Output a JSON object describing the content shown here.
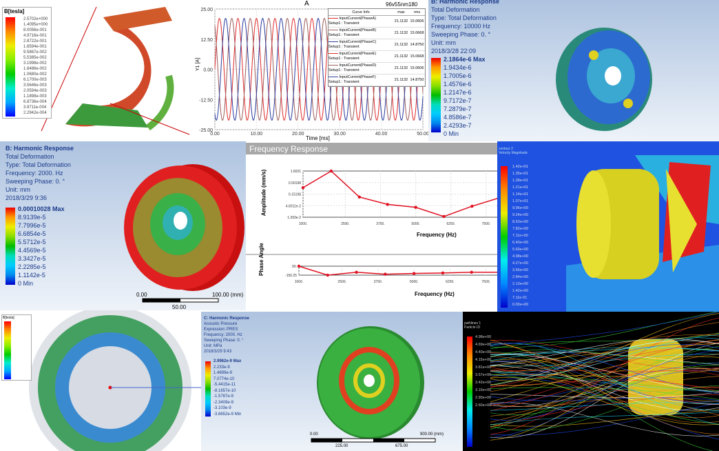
{
  "p1": {
    "title": "B[tesla]",
    "values": [
      "2.5702e+000",
      "1.4095e+000",
      "8.0056e-001",
      "4.9716e-001",
      "2.8722e-001",
      "1.6594e-001",
      "9.5867e-002",
      "5.5385e-002",
      "3.1998e-002",
      "1.8486e-002",
      "1.0680e-002",
      "6.1700e-003",
      "3.5646e-003",
      "2.0594e-003",
      "1.1898e-003",
      "6.8736e-004",
      "3.9711e-004",
      "2.2942e-004"
    ]
  },
  "p3": {
    "lines": [
      "B: Harmonic Response",
      "Total Deformation",
      "Type: Total Deformation",
      "Frequency: 10000 Hz",
      "Sweeping Phase: 0. °",
      "Unit: mm",
      "2018/3/28 22:09"
    ],
    "values": [
      "2.1864e-6 Max",
      "1.9434e-6",
      "1.7005e-6",
      "1.4576e-6",
      "1.2147e-6",
      "9.7172e-7",
      "7.2879e-7",
      "4.8586e-7",
      "2.4293e-7",
      "0 Min"
    ]
  },
  "p4": {
    "lines": [
      "B: Harmonic Response",
      "Total Deformation",
      "Type: Total Deformation",
      "Frequency: 2000. Hz",
      "Sweeping Phase: 0. °",
      "Unit: mm",
      "2018/3/29 9:36"
    ],
    "values": [
      "0.00010028 Max",
      "8.9139e-5",
      "7.7996e-5",
      "6.6854e-5",
      "5.5712e-5",
      "4.4569e-5",
      "3.3427e-5",
      "2.2285e-5",
      "1.1142e-5",
      "0 Min"
    ],
    "scale": {
      "left": "0.00",
      "right": "100.00 (mm)",
      "mid": "50.00"
    }
  },
  "p6": {
    "lines": [
      "contour 2",
      "Velocity Magnitude"
    ],
    "values": [
      "1.42e+01",
      "1.35e+01",
      "1.28e+01",
      "1.21e+01",
      "1.14e+01",
      "1.07e+01",
      "9.96e+00",
      "9.24e+00",
      "8.53e+00",
      "7.82e+00",
      "7.11e+00",
      "6.40e+00",
      "5.69e+00",
      "4.98e+00",
      "4.27e+00",
      "3.56e+00",
      "2.84e+00",
      "2.13e+00",
      "1.42e+00",
      "7.11e-01",
      "0.00e+00"
    ]
  },
  "p7": {
    "title": "B[tesla]"
  },
  "p8": {
    "lines": [
      "C: Harmonic Response",
      "Acoustic Pressure",
      "Expression: PRES",
      "Frequency: 2000. Hz",
      "Sweeping Phase: 0. °",
      "Unit: MPa",
      "2018/3/29 9:43"
    ],
    "values": [
      "2.9962e-9 Max",
      "2.233e-9",
      "1.4699e-9",
      "7.0774e-10",
      "-5.4415e-11",
      "-8.1657e-10",
      "-1.5787e-9",
      "-2.3409e-9",
      "-3.103e-9",
      "-3.8652e-9 Min"
    ],
    "scale": {
      "left": "0.00",
      "right": "900.00 (mm)",
      "t1": "225.00",
      "t2": "675.00"
    }
  },
  "p9": {
    "lines": [
      "pathlines 1",
      "Particle ID"
    ],
    "values": [
      "4.98e+00",
      "4.69e+00",
      "4.40e+00",
      "4.15e+00",
      "3.81e+00",
      "3.57e+00",
      "3.42e+00",
      "3.15e+00",
      "2.90e+00",
      "2.60e+00"
    ]
  },
  "chart_data": [
    {
      "type": "line",
      "title": "A",
      "subtitle": "96v55nm180",
      "xlabel": "Time [ms]",
      "ylabel": "Y1 [A]",
      "xlim": [
        0,
        50
      ],
      "ylim": [
        -25,
        25
      ],
      "xticks": [
        "0.00",
        "10.00",
        "20.00",
        "30.00",
        "40.00",
        "50.00"
      ],
      "yticks": [
        "25.00",
        "12.50",
        "0.00",
        "-12.50",
        "-25.00"
      ],
      "grid": true,
      "legend": "top-right",
      "legend_headers": [
        "Curve Info",
        "max",
        "rms"
      ],
      "period_ms": 4.45,
      "series": [
        {
          "name": "InputCurrent(PhaseA)",
          "sub": "Setup1 : Transient",
          "max": "21.1132",
          "rms": "15.0606",
          "amplitude": 21.1132,
          "phase_deg": 0,
          "color": "#e03030"
        },
        {
          "name": "InputCurrent(PhaseB)",
          "sub": "Setup1 : Transient",
          "max": "21.1132",
          "rms": "15.0668",
          "amplitude": 21.1132,
          "phase_deg": 120,
          "color": "#a06060"
        },
        {
          "name": "InputCurrent(PhaseC)",
          "sub": "Setup1 : Transient",
          "max": "21.1132",
          "rms": "14.8750",
          "amplitude": 21.1132,
          "phase_deg": 240,
          "color": "#3040a0"
        },
        {
          "name": "InputCurrent(PhaseE)",
          "sub": "Setup1 : Transient",
          "max": "21.1132",
          "rms": "15.0668",
          "amplitude": 21.1132,
          "phase_deg": 0,
          "color": "#e03030"
        },
        {
          "name": "InputCurrent(PhaseD)",
          "sub": "Setup1 : Transient",
          "max": "21.1132",
          "rms": "15.0606",
          "amplitude": 21.1132,
          "phase_deg": 120,
          "color": "#a06060"
        },
        {
          "name": "InputCurrent(PhaseF)",
          "sub": "Setup1 : Transient",
          "max": "21.1132",
          "rms": "14.8750",
          "amplitude": 21.1132,
          "phase_deg": 240,
          "color": "#3040a0"
        }
      ]
    },
    {
      "type": "line",
      "title": "Frequency Response",
      "xlabel": "Frequency (Hz)",
      "ylabel": "Amplitude (mm/s)",
      "yscale": "log",
      "xlim": [
        1000,
        7700
      ],
      "ylim": [
        0.01393,
        1.6031
      ],
      "xticks": [
        "1000.",
        "2500.",
        "3750.",
        "5000.",
        "6250.",
        "7500."
      ],
      "yticks": [
        "1.6031",
        "0.50198",
        "0.15198",
        "4.6011e-2",
        "1.393e-2"
      ],
      "grid": true,
      "color": "#e01020",
      "x": [
        1000,
        2000,
        3000,
        4000,
        5000,
        6000,
        7000,
        8000
      ],
      "y": [
        0.29,
        1.6031,
        0.111,
        0.052,
        0.0385,
        0.015,
        0.043,
        0.105
      ]
    },
    {
      "type": "line",
      "xlabel": "Frequency (Hz)",
      "ylabel": "Phase Angle",
      "xlim": [
        1000,
        7700
      ],
      "ylim": [
        -150.25,
        90
      ],
      "xticks": [
        "1000.",
        "2500.",
        "3750.",
        "5000.",
        "6250.",
        "7500."
      ],
      "yticks": [
        "90.",
        "-150.25"
      ],
      "color": "#e01020",
      "x": [
        1000,
        2000,
        3000,
        4000,
        5000,
        6000,
        7000,
        8000
      ],
      "y": [
        90,
        -150.25,
        -72,
        -124,
        -105,
        -92,
        -72,
        -72
      ]
    }
  ]
}
